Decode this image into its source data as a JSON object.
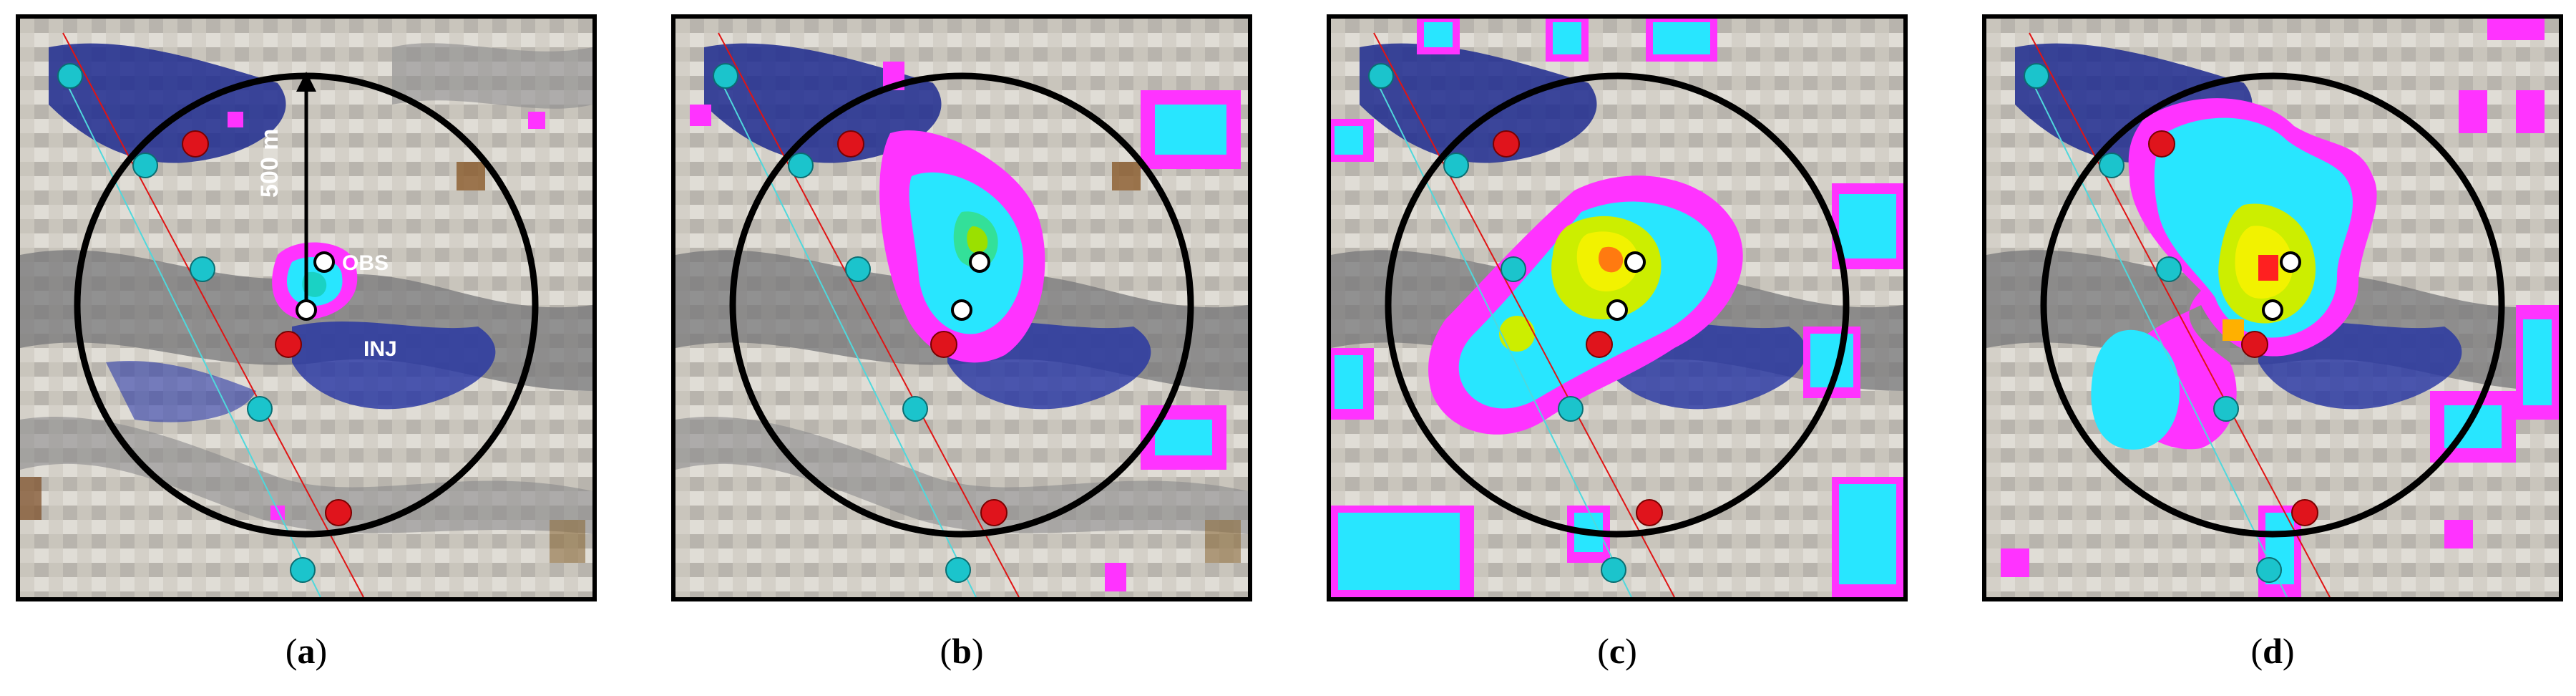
{
  "panels": [
    {
      "id": "a",
      "caption_open": "(",
      "caption_letter": "a",
      "caption_close": ")"
    },
    {
      "id": "b",
      "caption_open": "(",
      "caption_letter": "b",
      "caption_close": ")"
    },
    {
      "id": "c",
      "caption_open": "(",
      "caption_letter": "c",
      "caption_close": ")"
    },
    {
      "id": "d",
      "caption_open": "(",
      "caption_letter": "d",
      "caption_close": ")"
    }
  ],
  "annotations": {
    "radius_label": "500 m",
    "obs_label": "OBS",
    "inj_label": "INJ"
  },
  "colors": {
    "background_gray": "#cfcac3",
    "dark_gray": "#6f6f72",
    "blue_zone": "#1d2a8f",
    "brown": "#8a5a2b",
    "magenta": "#ff33ff",
    "cyan": "#28e6ff",
    "yellow": "#f2f200",
    "red_core": "#ff2020",
    "red_well": "#e0141c",
    "cyan_well": "#1bc4cc",
    "circle": "#000000"
  }
}
